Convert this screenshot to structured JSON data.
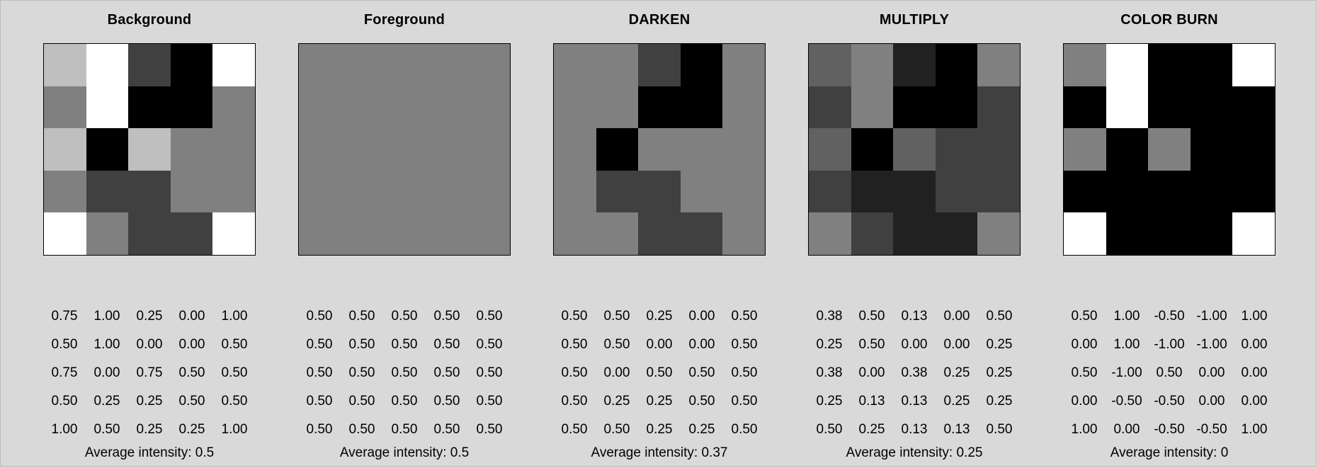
{
  "panels": [
    {
      "title": "Background",
      "cells": [
        [
          0.75,
          1.0,
          0.25,
          0.0,
          1.0
        ],
        [
          0.5,
          1.0,
          0.0,
          0.0,
          0.5
        ],
        [
          0.75,
          0.0,
          0.75,
          0.5,
          0.5
        ],
        [
          0.5,
          0.25,
          0.25,
          0.5,
          0.5
        ],
        [
          1.0,
          0.5,
          0.25,
          0.25,
          1.0
        ]
      ],
      "labels": [
        [
          "0.75",
          "1.00",
          "0.25",
          "0.00",
          "1.00"
        ],
        [
          "0.50",
          "1.00",
          "0.00",
          "0.00",
          "0.50"
        ],
        [
          "0.75",
          "0.00",
          "0.75",
          "0.50",
          "0.50"
        ],
        [
          "0.50",
          "0.25",
          "0.25",
          "0.50",
          "0.50"
        ],
        [
          "1.00",
          "0.50",
          "0.25",
          "0.25",
          "1.00"
        ]
      ],
      "average": "Average intensity: 0.5"
    },
    {
      "title": "Foreground",
      "cells": [
        [
          0.5,
          0.5,
          0.5,
          0.5,
          0.5
        ],
        [
          0.5,
          0.5,
          0.5,
          0.5,
          0.5
        ],
        [
          0.5,
          0.5,
          0.5,
          0.5,
          0.5
        ],
        [
          0.5,
          0.5,
          0.5,
          0.5,
          0.5
        ],
        [
          0.5,
          0.5,
          0.5,
          0.5,
          0.5
        ]
      ],
      "labels": [
        [
          "0.50",
          "0.50",
          "0.50",
          "0.50",
          "0.50"
        ],
        [
          "0.50",
          "0.50",
          "0.50",
          "0.50",
          "0.50"
        ],
        [
          "0.50",
          "0.50",
          "0.50",
          "0.50",
          "0.50"
        ],
        [
          "0.50",
          "0.50",
          "0.50",
          "0.50",
          "0.50"
        ],
        [
          "0.50",
          "0.50",
          "0.50",
          "0.50",
          "0.50"
        ]
      ],
      "average": "Average intensity: 0.5"
    },
    {
      "title": "DARKEN",
      "cells": [
        [
          0.5,
          0.5,
          0.25,
          0.0,
          0.5
        ],
        [
          0.5,
          0.5,
          0.0,
          0.0,
          0.5
        ],
        [
          0.5,
          0.0,
          0.5,
          0.5,
          0.5
        ],
        [
          0.5,
          0.25,
          0.25,
          0.5,
          0.5
        ],
        [
          0.5,
          0.5,
          0.25,
          0.25,
          0.5
        ]
      ],
      "labels": [
        [
          "0.50",
          "0.50",
          "0.25",
          "0.00",
          "0.50"
        ],
        [
          "0.50",
          "0.50",
          "0.00",
          "0.00",
          "0.50"
        ],
        [
          "0.50",
          "0.00",
          "0.50",
          "0.50",
          "0.50"
        ],
        [
          "0.50",
          "0.25",
          "0.25",
          "0.50",
          "0.50"
        ],
        [
          "0.50",
          "0.50",
          "0.25",
          "0.25",
          "0.50"
        ]
      ],
      "average": "Average intensity: 0.37"
    },
    {
      "title": "MULTIPLY",
      "cells": [
        [
          0.38,
          0.5,
          0.13,
          0.0,
          0.5
        ],
        [
          0.25,
          0.5,
          0.0,
          0.0,
          0.25
        ],
        [
          0.38,
          0.0,
          0.38,
          0.25,
          0.25
        ],
        [
          0.25,
          0.13,
          0.13,
          0.25,
          0.25
        ],
        [
          0.5,
          0.25,
          0.13,
          0.13,
          0.5
        ]
      ],
      "labels": [
        [
          "0.38",
          "0.50",
          "0.13",
          "0.00",
          "0.50"
        ],
        [
          "0.25",
          "0.50",
          "0.00",
          "0.00",
          "0.25"
        ],
        [
          "0.38",
          "0.00",
          "0.38",
          "0.25",
          "0.25"
        ],
        [
          "0.25",
          "0.13",
          "0.13",
          "0.25",
          "0.25"
        ],
        [
          "0.50",
          "0.25",
          "0.13",
          "0.13",
          "0.50"
        ]
      ],
      "average": "Average intensity: 0.25"
    },
    {
      "title": "COLOR BURN",
      "cells": [
        [
          0.5,
          1.0,
          -0.5,
          -1.0,
          1.0
        ],
        [
          0.0,
          1.0,
          -1.0,
          -1.0,
          0.0
        ],
        [
          0.5,
          -1.0,
          0.5,
          0.0,
          0.0
        ],
        [
          0.0,
          -0.5,
          -0.5,
          0.0,
          0.0
        ],
        [
          1.0,
          0.0,
          -0.5,
          -0.5,
          1.0
        ]
      ],
      "labels": [
        [
          "0.50",
          "1.00",
          "-0.50",
          "-1.00",
          "1.00"
        ],
        [
          "0.00",
          "1.00",
          "-1.00",
          "-1.00",
          "0.00"
        ],
        [
          "0.50",
          "-1.00",
          "0.50",
          "0.00",
          "0.00"
        ],
        [
          "0.00",
          "-0.50",
          "-0.50",
          "0.00",
          "0.00"
        ],
        [
          "1.00",
          "0.00",
          "-0.50",
          "-0.50",
          "1.00"
        ]
      ],
      "average": "Average intensity: 0"
    }
  ]
}
